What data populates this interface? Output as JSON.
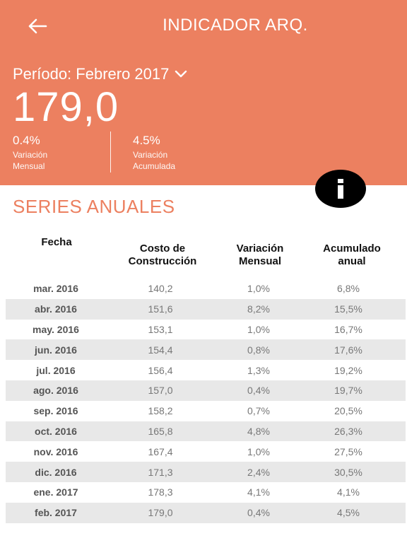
{
  "header": {
    "title": "INDICADOR ARQ.",
    "period_label": "Período: Febrero 2017",
    "value": "179,0",
    "monthly_variation": {
      "value": "0.4%",
      "label_line1": "Variación",
      "label_line2": "Mensual"
    },
    "accumulated_variation": {
      "value": "4.5%",
      "label_line1": "Variación",
      "label_line2": "Acumulada"
    }
  },
  "icons": {
    "back": "arrow-left-icon",
    "dropdown": "chevron-down-icon",
    "info": "info-icon"
  },
  "colors": {
    "accent": "#ec8060",
    "row_alt": "#e8e8e8"
  },
  "section_title": "SERIES ANUALES",
  "table": {
    "headers": {
      "fecha": "Fecha",
      "costo_l1": "Costo de",
      "costo_l2": "Construcción",
      "variacion_l1": "Variación",
      "variacion_l2": "Mensual",
      "acumulado_l1": "Acumulado",
      "acumulado_l2": "anual"
    },
    "rows": [
      {
        "fecha": "mar. 2016",
        "costo": "140,2",
        "variacion": "1,0%",
        "acumulado": "6,8%"
      },
      {
        "fecha": "abr. 2016",
        "costo": "151,6",
        "variacion": "8,2%",
        "acumulado": "15,5%"
      },
      {
        "fecha": "may. 2016",
        "costo": "153,1",
        "variacion": "1,0%",
        "acumulado": "16,7%"
      },
      {
        "fecha": "jun. 2016",
        "costo": "154,4",
        "variacion": "0,8%",
        "acumulado": "17,6%"
      },
      {
        "fecha": "jul. 2016",
        "costo": "156,4",
        "variacion": "1,3%",
        "acumulado": "19,2%"
      },
      {
        "fecha": "ago. 2016",
        "costo": "157,0",
        "variacion": "0,4%",
        "acumulado": "19,7%"
      },
      {
        "fecha": "sep. 2016",
        "costo": "158,2",
        "variacion": "0,7%",
        "acumulado": "20,5%"
      },
      {
        "fecha": "oct. 2016",
        "costo": "165,8",
        "variacion": "4,8%",
        "acumulado": "26,3%"
      },
      {
        "fecha": "nov. 2016",
        "costo": "167,4",
        "variacion": "1,0%",
        "acumulado": "27,5%"
      },
      {
        "fecha": "dic. 2016",
        "costo": "171,3",
        "variacion": "2,4%",
        "acumulado": "30,5%"
      },
      {
        "fecha": "ene. 2017",
        "costo": "178,3",
        "variacion": "4,1%",
        "acumulado": "4,1%"
      },
      {
        "fecha": "feb. 2017",
        "costo": "179,0",
        "variacion": "0,4%",
        "acumulado": "4,5%"
      }
    ]
  }
}
